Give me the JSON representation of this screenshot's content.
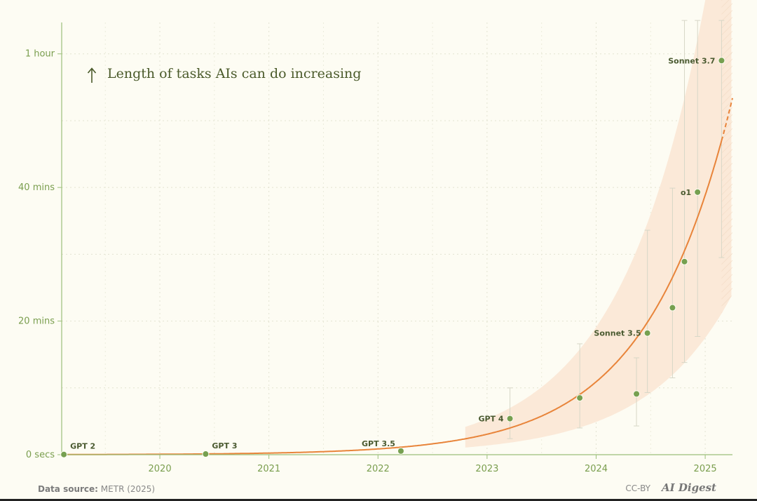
{
  "chart_data": {
    "type": "scatter",
    "title": "Length of tasks AIs can do increasing",
    "title_icon": "arrow-up-icon",
    "y_ticks": [
      {
        "label": "0 secs",
        "value": 0
      },
      {
        "label": "20 mins",
        "value": 20
      },
      {
        "label": "40 mins",
        "value": 40
      },
      {
        "label": "1 hour",
        "value": 60
      }
    ],
    "x_ticks": [
      "2020",
      "2021",
      "2022",
      "2023",
      "2024",
      "2025"
    ],
    "xlim": [
      2019.1,
      2025.25
    ],
    "ylim": [
      0,
      64.7
    ],
    "grid": true,
    "points": [
      {
        "label": "GPT 2",
        "x": 2019.12,
        "y": 0.03
      },
      {
        "label": "GPT 3",
        "x": 2020.42,
        "y": 0.1
      },
      {
        "label": "GPT 3.5",
        "x": 2022.21,
        "y": 0.55
      },
      {
        "label": "GPT 4",
        "x": 2023.21,
        "y": 5.4,
        "err": [
          2.4,
          10.0
        ]
      },
      {
        "label": "",
        "x": 2023.85,
        "y": 8.5,
        "err": [
          4.0,
          16.6
        ]
      },
      {
        "label": "",
        "x": 2024.37,
        "y": 9.1,
        "err": [
          4.3,
          14.5
        ]
      },
      {
        "label": "Sonnet 3.5",
        "x": 2024.47,
        "y": 18.2,
        "err": [
          9.3,
          33.6
        ]
      },
      {
        "label": "",
        "x": 2024.7,
        "y": 22.0,
        "err": [
          11.5,
          39.9
        ]
      },
      {
        "label": "",
        "x": 2024.81,
        "y": 28.9,
        "err": [
          13.8,
          65.0
        ]
      },
      {
        "label": "o1",
        "x": 2024.93,
        "y": 39.3,
        "err": [
          17.7,
          65.0
        ]
      },
      {
        "label": "Sonnet 3.7",
        "x": 2025.15,
        "y": 59.0,
        "err": [
          29.5,
          65.0
        ]
      }
    ],
    "trend": {
      "type": "exponential",
      "solid_until": 2025.15,
      "color": "#e8843a"
    },
    "colors": {
      "points": "#76a050",
      "trend": "#e8843a",
      "band": "#fbe9d8"
    }
  },
  "footer": {
    "source_label": "Data source:",
    "source_value": "METR (2025)",
    "license": "CC-BY",
    "brand": "AI Digest"
  }
}
